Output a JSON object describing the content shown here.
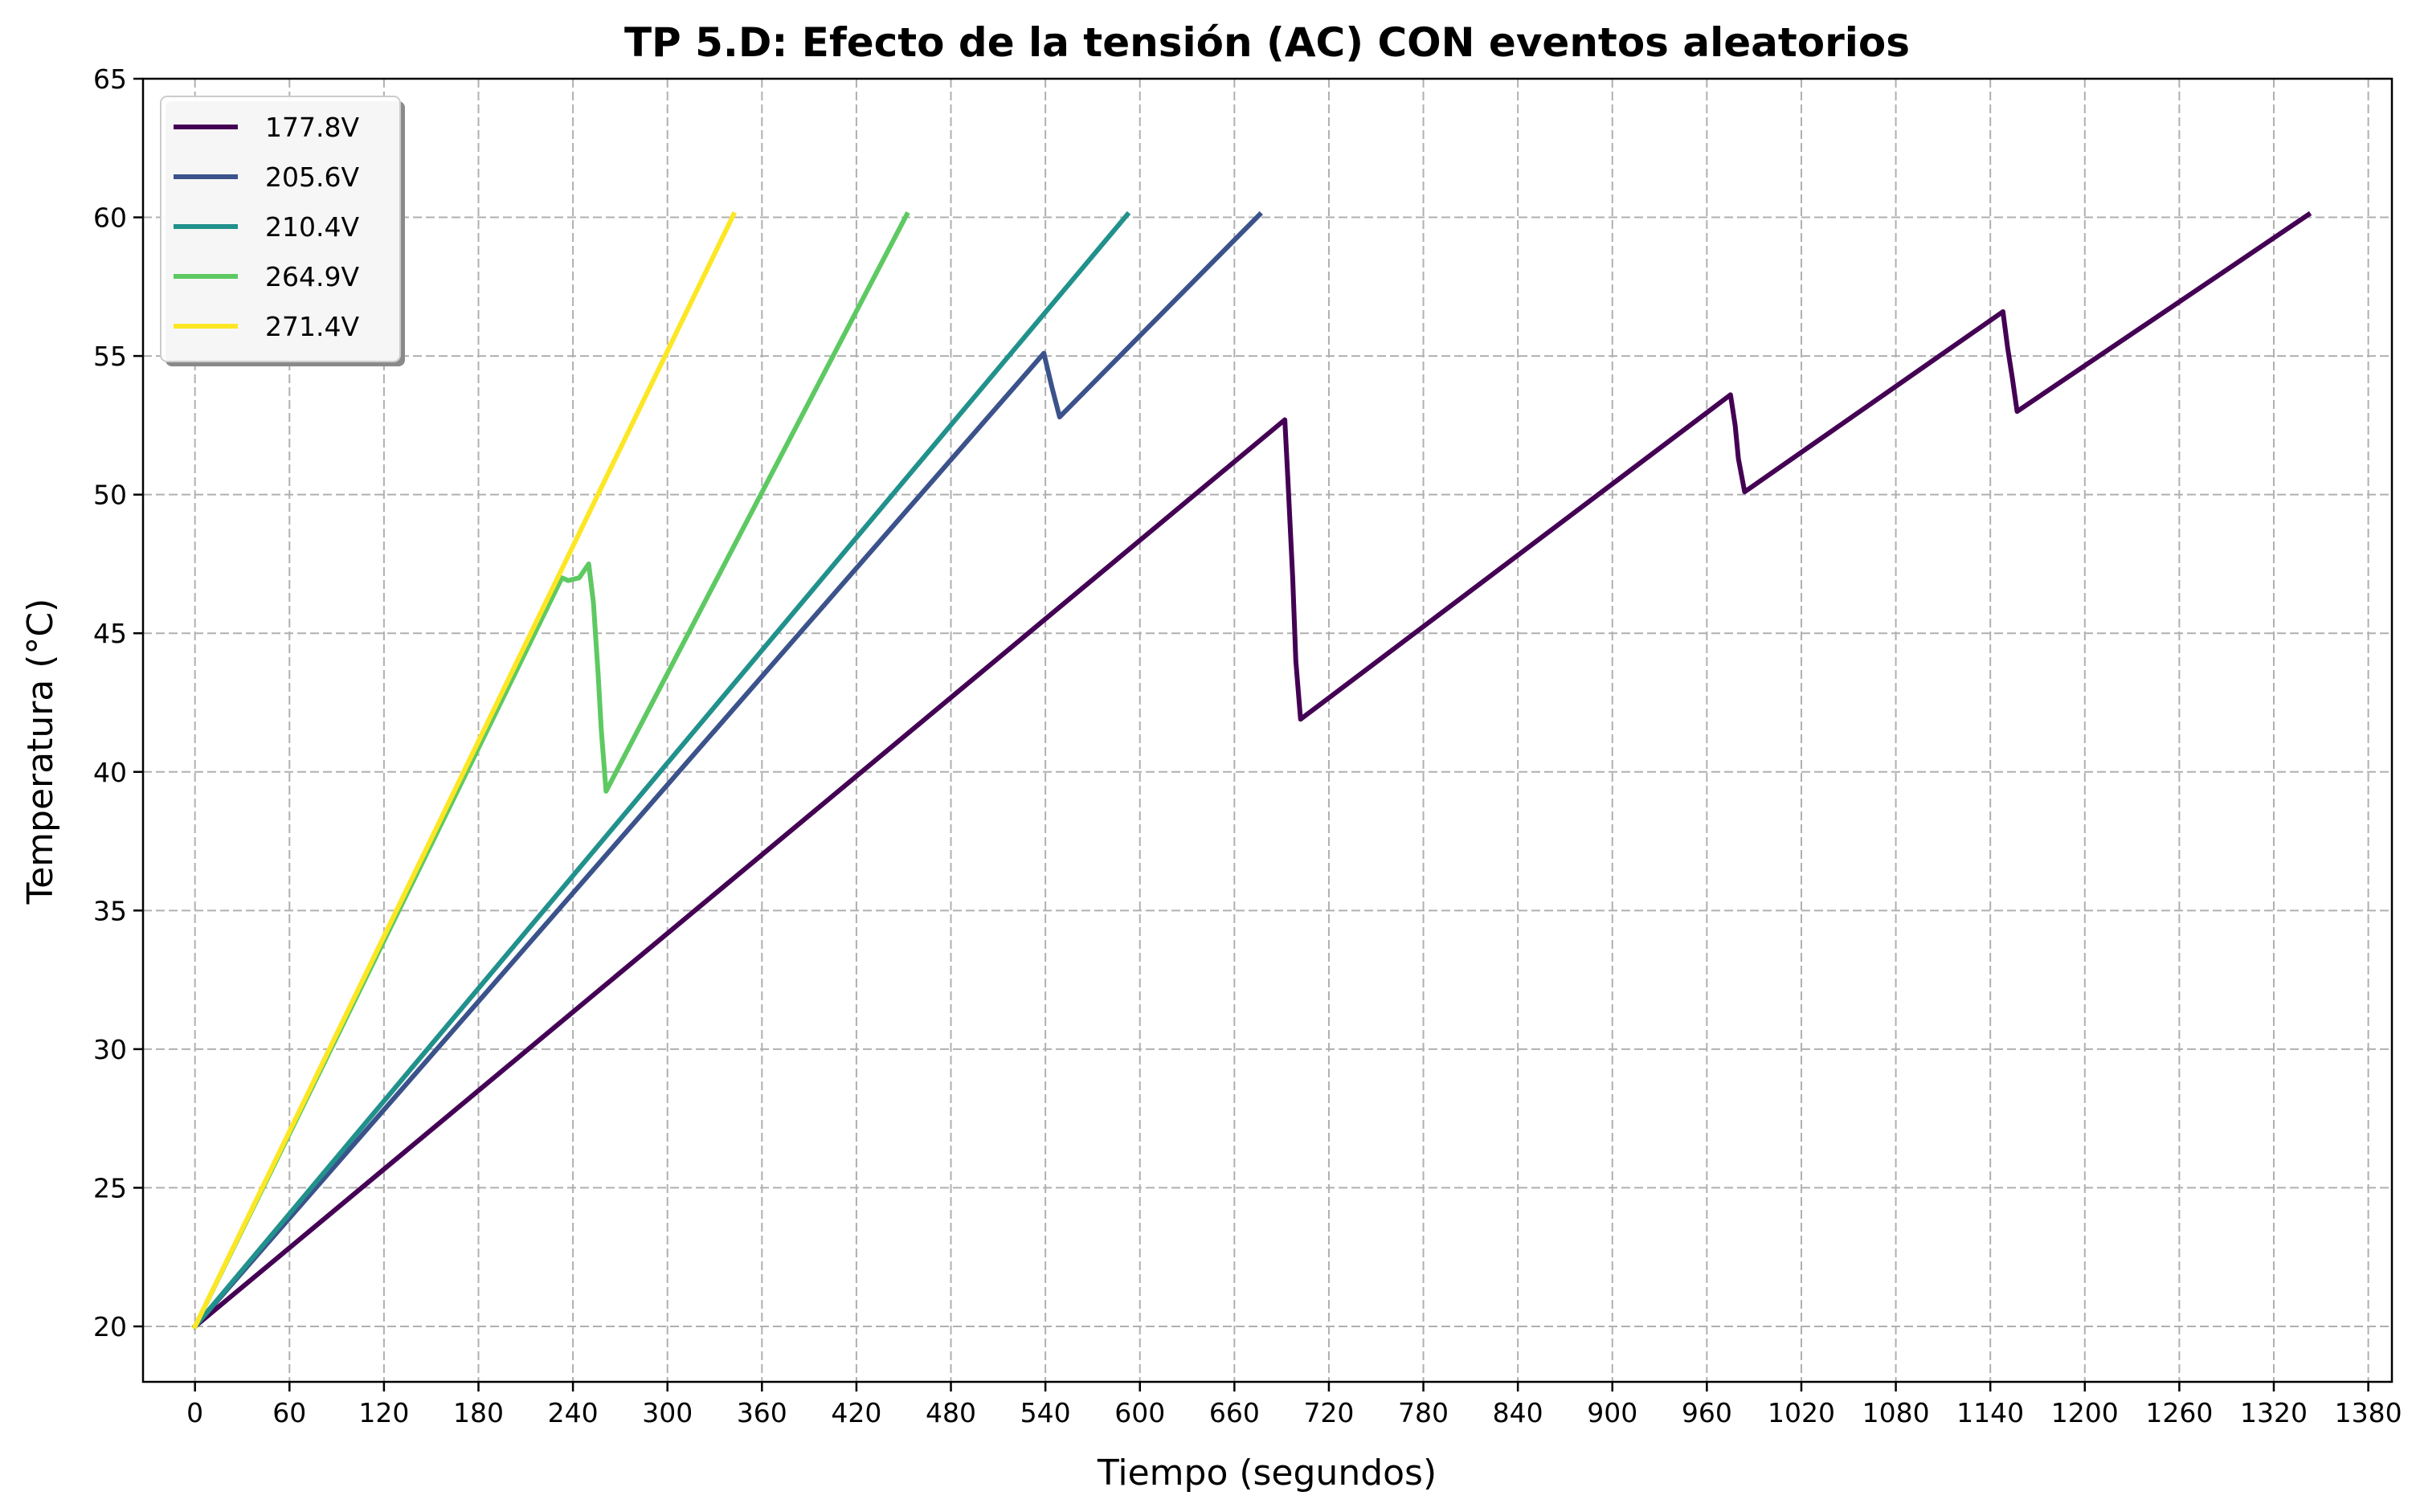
{
  "chart_data": {
    "type": "line",
    "title": "TP 5.D: Efecto de la tensión (AC) CON eventos aleatorios",
    "xlabel": "Tiempo (segundos)",
    "ylabel": "Temperatura (°C)",
    "xlim": [
      -33,
      1395
    ],
    "ylim": [
      18,
      65
    ],
    "x_ticks": [
      0,
      60,
      120,
      180,
      240,
      300,
      360,
      420,
      480,
      540,
      600,
      660,
      720,
      780,
      840,
      900,
      960,
      1020,
      1080,
      1140,
      1200,
      1260,
      1320,
      1380
    ],
    "x_tick_labels": [
      "0",
      "60",
      "120",
      "180",
      "240",
      "300",
      "360",
      "420",
      "480",
      "540",
      "600",
      "660",
      "720",
      "780",
      "840",
      "900",
      "960",
      "1020",
      "1080",
      "1140",
      "1200",
      "1260",
      "1320",
      "1380"
    ],
    "y_ticks": [
      20,
      25,
      30,
      35,
      40,
      45,
      50,
      55,
      60,
      65
    ],
    "y_tick_labels": [
      "20",
      "25",
      "30",
      "35",
      "40",
      "45",
      "50",
      "55",
      "60",
      "65"
    ],
    "grid": true,
    "legend_position": "top-left",
    "series": [
      {
        "name": "177.8V",
        "color": "#440154",
        "points": [
          [
            0,
            20
          ],
          [
            692,
            52.7
          ],
          [
            694,
            50.5
          ],
          [
            697,
            47.0
          ],
          [
            699,
            44.0
          ],
          [
            702,
            41.9
          ],
          [
            975,
            53.6
          ],
          [
            978,
            52.5
          ],
          [
            980,
            51.3
          ],
          [
            984,
            50.1
          ],
          [
            1148,
            56.6
          ],
          [
            1151,
            55.3
          ],
          [
            1154,
            54.2
          ],
          [
            1157,
            53.0
          ],
          [
            1342,
            60.1
          ]
        ]
      },
      {
        "name": "205.6V",
        "color": "#3b528b",
        "points": [
          [
            0,
            20
          ],
          [
            539,
            55.1
          ],
          [
            544,
            53.9
          ],
          [
            549,
            52.8
          ],
          [
            676,
            60.1
          ]
        ]
      },
      {
        "name": "210.4V",
        "color": "#21918c",
        "points": [
          [
            0,
            20
          ],
          [
            592,
            60.1
          ]
        ]
      },
      {
        "name": "264.9V",
        "color": "#5ec962",
        "points": [
          [
            0,
            20
          ],
          [
            233,
            47.0
          ],
          [
            237,
            46.9
          ],
          [
            244,
            47.0
          ],
          [
            250,
            47.5
          ],
          [
            253,
            46.1
          ],
          [
            256,
            43.5
          ],
          [
            258,
            41.5
          ],
          [
            261,
            39.3
          ],
          [
            452,
            60.1
          ]
        ]
      },
      {
        "name": "271.4V",
        "color": "#fde725",
        "points": [
          [
            0,
            20
          ],
          [
            342,
            60.1
          ]
        ]
      }
    ]
  }
}
